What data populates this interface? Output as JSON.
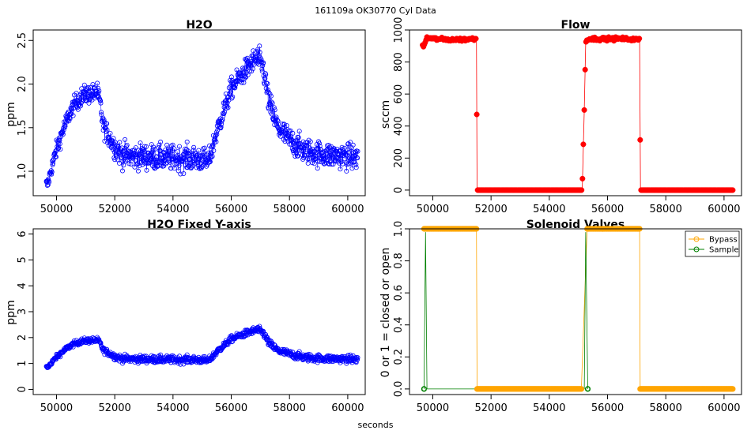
{
  "figure": {
    "suptitle": "161109a   OK30770   Cyl Data",
    "xlabel": "seconds"
  },
  "chart_data": [
    {
      "type": "scatter",
      "title": "H2O",
      "ylabel": "ppm",
      "xlabel": "",
      "xlim": [
        49200,
        60600
      ],
      "ylim": [
        0.72,
        2.62
      ],
      "xticks": [
        50000,
        52000,
        54000,
        56000,
        58000,
        60000
      ],
      "yticks": [
        1.0,
        1.5,
        2.0,
        2.5
      ],
      "ytick_labels": [
        "1.0",
        "1.5",
        "2.0",
        "2.5"
      ],
      "color": "#0000ff",
      "marker": "open-circle",
      "grid": false,
      "series": [
        {
          "name": "",
          "x": [
            49700,
            49800,
            50000,
            50200,
            50400,
            50600,
            50800,
            51000,
            51200,
            51400,
            51500,
            51600,
            51800,
            52000,
            52200,
            52500,
            53000,
            53500,
            54000,
            54500,
            55000,
            55200,
            55300,
            55500,
            55800,
            56000,
            56300,
            56600,
            56900,
            57100,
            57300,
            57600,
            58000,
            58500,
            59000,
            59500,
            60000,
            60300
          ],
          "y": [
            0.85,
            1.0,
            1.25,
            1.45,
            1.62,
            1.76,
            1.84,
            1.88,
            1.89,
            1.9,
            1.78,
            1.52,
            1.4,
            1.28,
            1.2,
            1.17,
            1.17,
            1.16,
            1.15,
            1.15,
            1.14,
            1.1,
            1.2,
            1.45,
            1.75,
            1.95,
            2.08,
            2.2,
            2.3,
            2.18,
            1.78,
            1.5,
            1.36,
            1.24,
            1.2,
            1.18,
            1.17,
            1.16
          ],
          "noise": [
            0.06,
            0.07,
            0.08,
            0.08,
            0.08,
            0.08,
            0.09,
            0.09,
            0.09,
            0.09,
            0.09,
            0.09,
            0.1,
            0.11,
            0.12,
            0.12,
            0.12,
            0.12,
            0.12,
            0.12,
            0.12,
            0.1,
            0.1,
            0.1,
            0.1,
            0.1,
            0.1,
            0.11,
            0.12,
            0.12,
            0.12,
            0.12,
            0.12,
            0.12,
            0.12,
            0.12,
            0.12,
            0.12
          ]
        }
      ]
    },
    {
      "type": "line",
      "title": "Flow",
      "ylabel": "sccm",
      "xlabel": "",
      "xlim": [
        49200,
        60600
      ],
      "ylim": [
        -35,
        1000
      ],
      "xticks": [
        50000,
        52000,
        54000,
        56000,
        58000,
        60000
      ],
      "yticks": [
        0,
        200,
        400,
        600,
        800,
        1000
      ],
      "ytick_labels": [
        "0",
        "200",
        "400",
        "600",
        "800",
        "1000"
      ],
      "color": "#ff0000",
      "marker": "filled-circle",
      "grid": false,
      "series": [
        {
          "name": "",
          "x": [
            49700,
            49750,
            49800,
            49850,
            50000,
            50500,
            51000,
            51400,
            51500,
            51520,
            55100,
            55130,
            55200,
            55250,
            55300,
            55500,
            56000,
            56500,
            57000,
            57100,
            57130,
            60300
          ],
          "y": [
            900,
            930,
            955,
            950,
            945,
            940,
            940,
            945,
            945,
            0,
            0,
            0,
            500,
            920,
            945,
            945,
            945,
            945,
            940,
            940,
            0,
            0
          ]
        }
      ]
    },
    {
      "type": "scatter",
      "title": "H2O Fixed Y-axis",
      "ylabel": "ppm",
      "xlabel": "",
      "xlim": [
        49200,
        60600
      ],
      "ylim": [
        -0.2,
        6.2
      ],
      "xticks": [
        50000,
        52000,
        54000,
        56000,
        58000,
        60000
      ],
      "yticks": [
        0,
        1,
        2,
        3,
        4,
        5,
        6
      ],
      "ytick_labels": [
        "0",
        "1",
        "2",
        "3",
        "4",
        "5",
        "6"
      ],
      "color": "#0000ff",
      "marker": "open-circle",
      "grid": false,
      "series_ref": "same data as H2O"
    },
    {
      "type": "line",
      "title": "Solenoid Valves",
      "ylabel": "0 or 1 = closed or open",
      "xlabel": "",
      "xlim": [
        49200,
        60600
      ],
      "ylim": [
        -0.035,
        1.0
      ],
      "xticks": [
        50000,
        52000,
        54000,
        56000,
        58000,
        60000
      ],
      "yticks": [
        0.0,
        0.2,
        0.4,
        0.6,
        0.8,
        1.0
      ],
      "ytick_labels": [
        "0.0",
        "0.2",
        "0.4",
        "0.6",
        "0.8",
        "1.0"
      ],
      "grid": false,
      "legend_position": "top-right",
      "series": [
        {
          "name": "Bypass",
          "color": "#ffa500",
          "x": [
            49700,
            51500,
            51520,
            55100,
            55300,
            57100,
            57120,
            60300
          ],
          "y": [
            1,
            1,
            0,
            0,
            1,
            1,
            0,
            0
          ]
        },
        {
          "name": "Sample",
          "color": "#008000",
          "x": [
            49700,
            49750,
            49800,
            55200,
            55250,
            55320
          ],
          "y": [
            0,
            0.98,
            0,
            0,
            0.98,
            0
          ]
        }
      ]
    }
  ]
}
